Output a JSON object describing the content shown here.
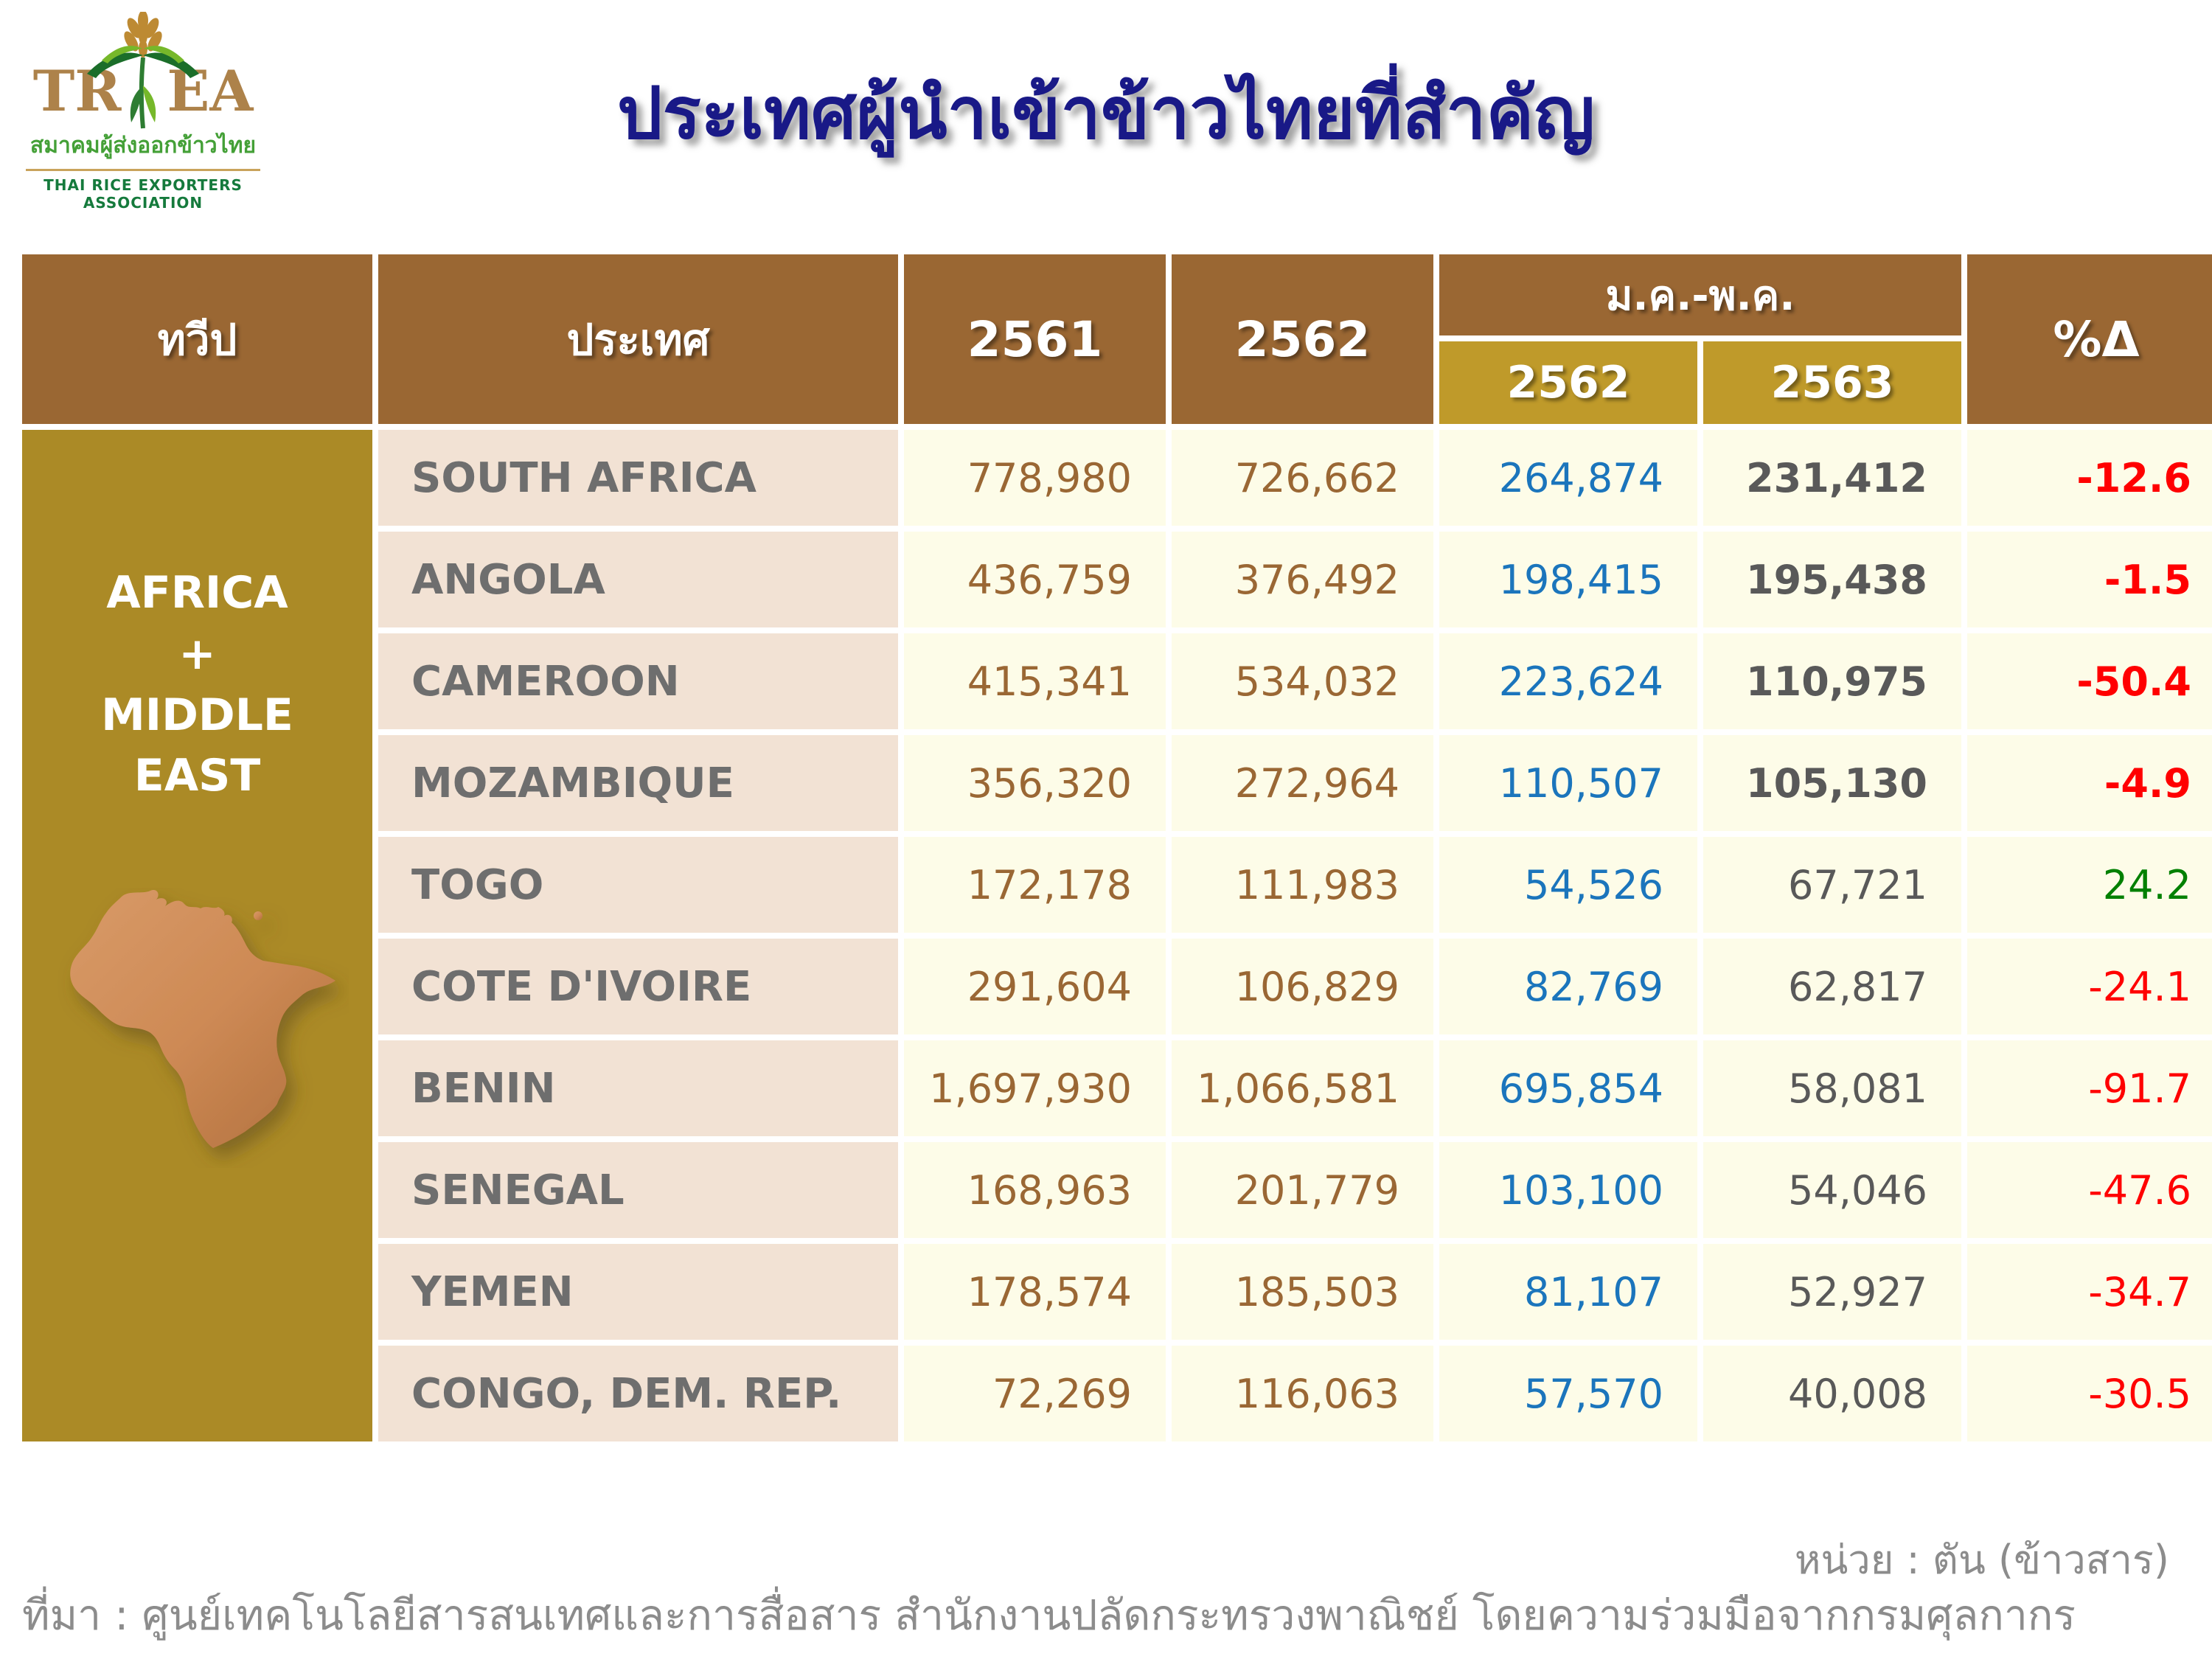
{
  "logo": {
    "acronym_left": "TR",
    "acronym_right": "EA",
    "thai_name": "สมาคมผู้ส่งออกข้าวไทย",
    "english_name": "THAI RICE EXPORTERS ASSOCIATION"
  },
  "title": "ประเทศผู้นำเข้าข้าวไทยที่สำคัญ",
  "table": {
    "headers": {
      "continent": "ทวีป",
      "country": "ประเทศ",
      "year1": "2561",
      "year2": "2562",
      "period_group": "ม.ค.-พ.ค.",
      "period_year1": "2562",
      "period_year2": "2563",
      "delta": "%Δ"
    },
    "continent_lines": [
      "AFRICA",
      "+",
      "MIDDLE",
      "EAST"
    ],
    "rows": [
      {
        "country": "SOUTH AFRICA",
        "y2561": "778,980",
        "y2562": "726,662",
        "jm2562": "264,874",
        "jm2563": "231,412",
        "delta": "-12.6",
        "trend": "down",
        "bold": true
      },
      {
        "country": "ANGOLA",
        "y2561": "436,759",
        "y2562": "376,492",
        "jm2562": "198,415",
        "jm2563": "195,438",
        "delta": "-1.5",
        "trend": "down",
        "bold": true
      },
      {
        "country": "CAMEROON",
        "y2561": "415,341",
        "y2562": "534,032",
        "jm2562": "223,624",
        "jm2563": "110,975",
        "delta": "-50.4",
        "trend": "down",
        "bold": true
      },
      {
        "country": "MOZAMBIQUE",
        "y2561": "356,320",
        "y2562": "272,964",
        "jm2562": "110,507",
        "jm2563": "105,130",
        "delta": "-4.9",
        "trend": "down",
        "bold": true
      },
      {
        "country": "TOGO",
        "y2561": "172,178",
        "y2562": "111,983",
        "jm2562": "54,526",
        "jm2563": "67,721",
        "delta": "24.2",
        "trend": "up",
        "bold": false
      },
      {
        "country": "COTE D'IVOIRE",
        "y2561": "291,604",
        "y2562": "106,829",
        "jm2562": "82,769",
        "jm2563": "62,817",
        "delta": "-24.1",
        "trend": "down",
        "bold": false
      },
      {
        "country": "BENIN",
        "y2561": "1,697,930",
        "y2562": "1,066,581",
        "jm2562": "695,854",
        "jm2563": "58,081",
        "delta": "-91.7",
        "trend": "down",
        "bold": false
      },
      {
        "country": "SENEGAL",
        "y2561": "168,963",
        "y2562": "201,779",
        "jm2562": "103,100",
        "jm2563": "54,046",
        "delta": "-47.6",
        "trend": "down",
        "bold": false
      },
      {
        "country": "YEMEN",
        "y2561": "178,574",
        "y2562": "185,503",
        "jm2562": "81,107",
        "jm2563": "52,927",
        "delta": "-34.7",
        "trend": "down",
        "bold": false
      },
      {
        "country": "CONGO, DEM. REP.",
        "y2561": "72,269",
        "y2562": "116,063",
        "jm2562": "57,570",
        "jm2563": "40,008",
        "delta": "-30.5",
        "trend": "down",
        "bold": false
      }
    ]
  },
  "chart_data": {
    "type": "table",
    "title": "ประเทศผู้นำเข้าข้าวไทยที่สำคัญ",
    "unit": "ตัน (ข้าวสาร)",
    "continent": "AFRICA + MIDDLE EAST",
    "columns": [
      "ทวีป",
      "ประเทศ",
      "2561",
      "2562",
      "ม.ค.-พ.ค. 2562",
      "ม.ค.-พ.ค. 2563",
      "%Δ"
    ],
    "rows": [
      [
        "SOUTH AFRICA",
        778980,
        726662,
        264874,
        231412,
        -12.6
      ],
      [
        "ANGOLA",
        436759,
        376492,
        198415,
        195438,
        -1.5
      ],
      [
        "CAMEROON",
        415341,
        534032,
        223624,
        110975,
        -50.4
      ],
      [
        "MOZAMBIQUE",
        356320,
        272964,
        110507,
        105130,
        -4.9
      ],
      [
        "TOGO",
        172178,
        111983,
        54526,
        67721,
        24.2
      ],
      [
        "COTE D'IVOIRE",
        291604,
        106829,
        82769,
        62817,
        -24.1
      ],
      [
        "BENIN",
        1697930,
        1066581,
        695854,
        58081,
        -91.7
      ],
      [
        "SENEGAL",
        168963,
        201779,
        103100,
        54046,
        -47.6
      ],
      [
        "YEMEN",
        178574,
        185503,
        81107,
        52927,
        -34.7
      ],
      [
        "CONGO, DEM. REP.",
        72269,
        116063,
        57570,
        40008,
        -30.5
      ]
    ]
  },
  "footer": {
    "unit": "หน่วย : ตัน (ข้าวสาร)",
    "source": "ที่มา : ศูนย์เทคโนโลยีสารสนเทศและการสื่อสาร สำนักงานปลัดกระทรวงพาณิชย์ โดยความร่วมมือจากกรมศุลกากร"
  },
  "colors": {
    "header_brown": "#9A6733",
    "subheader_gold": "#BF9A2A",
    "continent_olive": "#AB8A26",
    "country_bg": "#F2E2D4",
    "value_bg": "#FDFCE8",
    "value_brown": "#9A6734",
    "value_blue": "#1B75BC",
    "value_gray": "#595959",
    "country_text": "#6E6E6E",
    "negative_red": "#FF0000",
    "positive_green": "#008000",
    "title_navy": "#191987",
    "footer_gray": "#8C8C8C",
    "logo_gold": "#AD824A",
    "map_copper": "#CE8A55"
  }
}
